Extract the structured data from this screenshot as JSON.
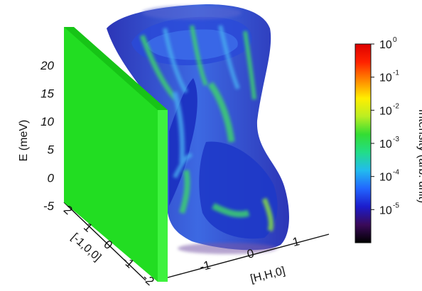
{
  "chart_data": {
    "type": "3d-volume",
    "z_axis": {
      "label": "E (meV)",
      "ticks": [
        "-5",
        "0",
        "5",
        "10",
        "15",
        "20"
      ],
      "range": [
        -5,
        23
      ]
    },
    "y_axis": {
      "label": "[-1,0,0]",
      "ticks": [
        "2",
        "1",
        "0",
        "-1",
        "-2"
      ]
    },
    "x_axis": {
      "label": "[H,H,0]",
      "ticks": [
        "-1",
        "0",
        "1"
      ]
    },
    "colorbar": {
      "label": "Intensity (arb. unit)",
      "scale": "log",
      "range": [
        1e-06,
        1
      ],
      "ticks": [
        {
          "base": "10",
          "exp": "0",
          "value": 1
        },
        {
          "base": "10",
          "exp": "-1",
          "value": 0.1
        },
        {
          "base": "10",
          "exp": "-2",
          "value": 0.01
        },
        {
          "base": "10",
          "exp": "-3",
          "value": 0.001
        },
        {
          "base": "10",
          "exp": "-4",
          "value": 0.0001
        },
        {
          "base": "10",
          "exp": "-5",
          "value": 1e-05
        }
      ],
      "colors": [
        "#000000",
        "#3a0a5a",
        "#1c1ccc",
        "#2266ff",
        "#22bbee",
        "#22dd88",
        "#33dd33",
        "#bbee22",
        "#ffee00",
        "#ff8800",
        "#ff2200",
        "#dd0000"
      ]
    },
    "colors": {
      "slice_plane": "#22dd22",
      "volume_dark": "#1a24b0",
      "volume_mid": "#2c5ce0",
      "volume_light": "#46a8ee",
      "volume_highlight": "#3cd070"
    }
  }
}
